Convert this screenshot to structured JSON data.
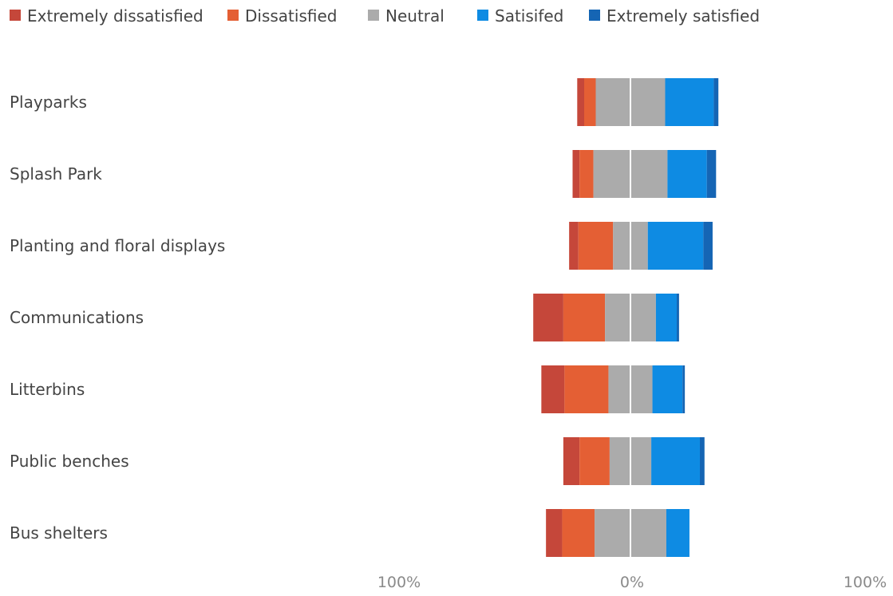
{
  "chart_data": {
    "type": "bar",
    "orientation": "horizontal",
    "stacked": "diverging",
    "legend_position": "top-left",
    "grid": false,
    "categories": [
      "Playparks",
      "Splash Park",
      "Planting and floral displays",
      "Communications",
      "Litterbins",
      "Public benches",
      "Bus shelters"
    ],
    "series": [
      {
        "name": "Extremely dissatisfied",
        "color": "#c5473a",
        "values": [
          3,
          3,
          4,
          13,
          10,
          7,
          7
        ]
      },
      {
        "name": "Dissatisfied",
        "color": "#e45f34",
        "values": [
          5,
          6,
          15,
          18,
          19,
          13,
          14
        ]
      },
      {
        "name": "Neutral",
        "color": "#ababab",
        "values": [
          30,
          32,
          15,
          22,
          19,
          18,
          31
        ]
      },
      {
        "name": "Satisifed",
        "color": "#0e8be3",
        "values": [
          21,
          17,
          24,
          9,
          13,
          21,
          10
        ]
      },
      {
        "name": "Extremely satisfied",
        "color": "#1565b4",
        "values": [
          2,
          4,
          4,
          1,
          1,
          2,
          0
        ]
      }
    ],
    "x_axis": {
      "range": [
        -100,
        100
      ],
      "ticks": [
        "100%",
        "0%",
        "100%"
      ]
    }
  }
}
